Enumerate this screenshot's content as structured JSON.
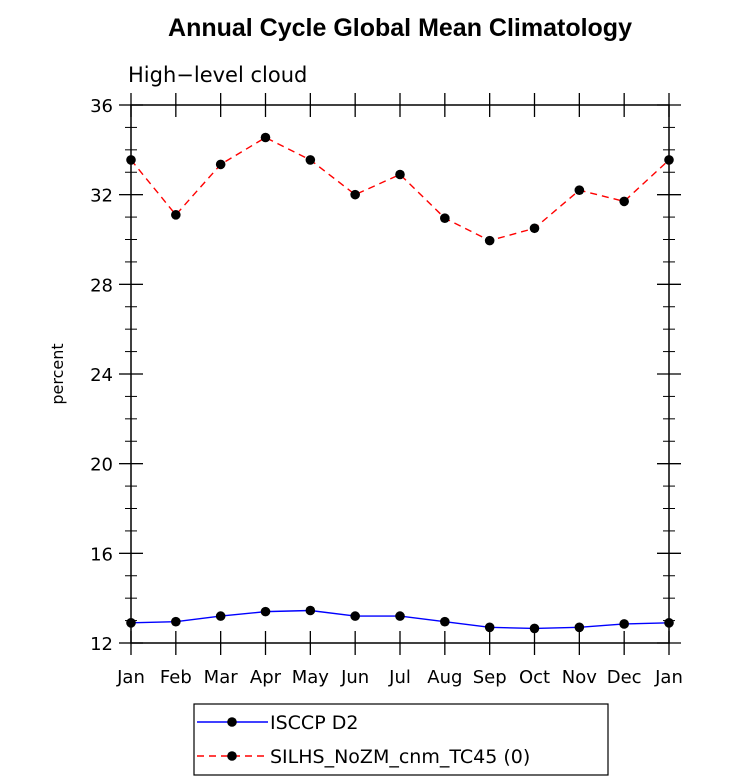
{
  "chart_data": {
    "type": "line",
    "title": "Annual Cycle Global Mean Climatology",
    "subtitle": "High−level cloud",
    "ylabel": "percent",
    "xlabel": "",
    "categories": [
      "Jan",
      "Feb",
      "Mar",
      "Apr",
      "May",
      "Jun",
      "Jul",
      "Aug",
      "Sep",
      "Oct",
      "Nov",
      "Dec",
      "Jan"
    ],
    "ylim": [
      12,
      36
    ],
    "yticks": [
      12,
      16,
      20,
      24,
      28,
      32,
      36
    ],
    "grid": false,
    "legend_position": "bottom",
    "series": [
      {
        "name": "ISCCP D2",
        "color": "#0000ff",
        "dash": "solid",
        "marker": "filled-circle",
        "values": [
          12.9,
          12.95,
          13.2,
          13.4,
          13.45,
          13.2,
          13.2,
          12.95,
          12.7,
          12.65,
          12.7,
          12.85,
          12.9
        ]
      },
      {
        "name": "SILHS_NoZM_cnm_TC45 (0)",
        "color": "#ff0000",
        "dash": "dashed",
        "marker": "filled-circle",
        "values": [
          33.55,
          31.1,
          33.35,
          34.55,
          33.55,
          32.0,
          32.9,
          30.95,
          29.95,
          30.5,
          32.2,
          31.7,
          33.55
        ]
      }
    ]
  }
}
